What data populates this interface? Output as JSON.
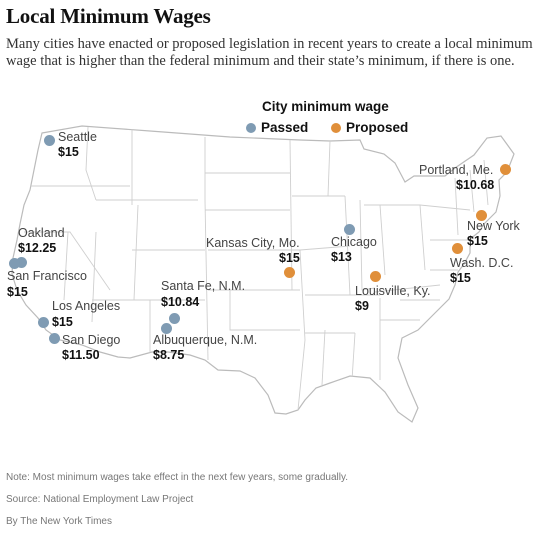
{
  "header": {
    "title": "Local Minimum Wages",
    "subtitle": "Many cities have enacted or proposed legislation in recent years to create a local minimum wage that is higher than the federal minimum and their state’s minimum, if there is one."
  },
  "legend": {
    "title": "City minimum wage",
    "passed_label": "Passed",
    "proposed_label": "Proposed",
    "passed_color": "#7f9bb3",
    "proposed_color": "#e08f3a"
  },
  "cities": [
    {
      "name": "Seattle",
      "wage": "$15",
      "status": "passed"
    },
    {
      "name": "Oakland",
      "wage": "$12.25",
      "status": "passed"
    },
    {
      "name": "San Francisco",
      "wage": "$15",
      "status": "passed"
    },
    {
      "name": "Los Angeles",
      "wage": "$15",
      "status": "passed"
    },
    {
      "name": "San Diego",
      "wage": "$11.50",
      "status": "passed"
    },
    {
      "name": "Santa Fe, N.M.",
      "wage": "$10.84",
      "status": "passed"
    },
    {
      "name": "Albuquerque, N.M.",
      "wage": "$8.75",
      "status": "passed"
    },
    {
      "name": "Kansas City, Mo.",
      "wage": "$15",
      "status": "proposed"
    },
    {
      "name": "Chicago",
      "wage": "$13",
      "status": "passed"
    },
    {
      "name": "Louisville, Ky.",
      "wage": "$9",
      "status": "proposed"
    },
    {
      "name": "Portland, Me.",
      "wage": "$10.68",
      "status": "proposed"
    },
    {
      "name": "New York",
      "wage": "$15",
      "status": "proposed"
    },
    {
      "name": "Wash. D.C.",
      "wage": "$15",
      "status": "proposed"
    }
  ],
  "footer": {
    "note": "Note: Most minimum wages take effect in the next few years, some gradually.",
    "source": "Source: National Employment Law Project",
    "credit": "By The New York Times"
  }
}
